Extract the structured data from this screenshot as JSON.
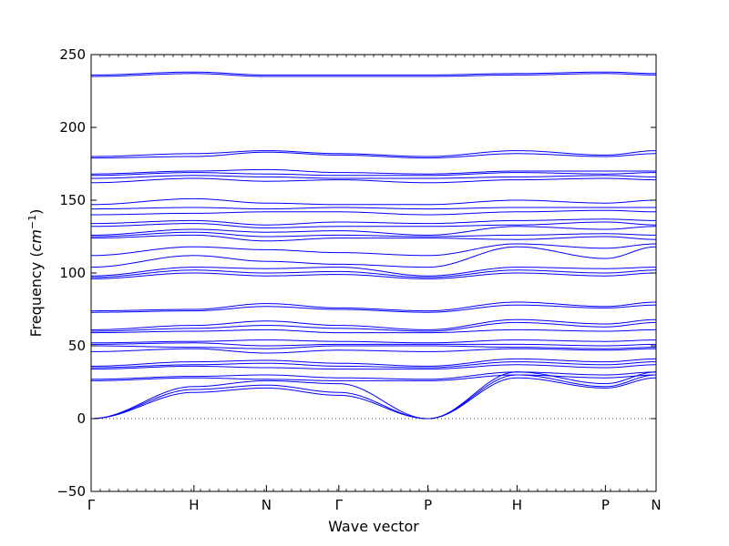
{
  "chart_data": {
    "type": "line",
    "title": "",
    "xlabel": "Wave vector",
    "ylabel_prefix": "Frequency (",
    "ylabel_unit_base": "cm",
    "ylabel_unit_exp": "−1",
    "ylabel_suffix": ")",
    "ylim": [
      -50,
      250
    ],
    "yticks": [
      -50,
      0,
      50,
      100,
      150,
      200,
      250
    ],
    "xlim": [
      0,
      7.8
    ],
    "kpoints": [
      {
        "label": "Γ",
        "x": 0
      },
      {
        "label": "H",
        "x": 1.42
      },
      {
        "label": "N",
        "x": 2.42
      },
      {
        "label": "Γ",
        "x": 3.42
      },
      {
        "label": "P",
        "x": 4.65
      },
      {
        "label": "H",
        "x": 5.88
      },
      {
        "label": "P",
        "x": 7.1
      },
      {
        "label": "N",
        "x": 7.8
      }
    ],
    "zero_line": 0,
    "line_color": "#0000ff",
    "grid": false,
    "legend": "none",
    "series": [
      {
        "values": [
          0,
          18,
          21,
          16,
          0,
          28,
          21,
          28,
          16
        ]
      },
      {
        "values": [
          0,
          20,
          23,
          18,
          0,
          30,
          22,
          30,
          18
        ]
      },
      {
        "values": [
          0,
          22,
          26,
          24,
          0,
          32,
          24,
          32,
          22
        ]
      },
      {
        "values": [
          26,
          28,
          27,
          26,
          26,
          30,
          28,
          30,
          29
        ]
      },
      {
        "values": [
          27,
          29,
          30,
          28,
          27,
          32,
          30,
          32,
          31
        ]
      },
      {
        "values": [
          34,
          36,
          35,
          34,
          34,
          37,
          35,
          37,
          36
        ]
      },
      {
        "values": [
          35,
          37,
          38,
          36,
          35,
          39,
          37,
          39,
          38
        ]
      },
      {
        "values": [
          36,
          39,
          40,
          38,
          36,
          41,
          39,
          41,
          40
        ]
      },
      {
        "values": [
          46,
          48,
          45,
          47,
          46,
          48,
          47,
          48,
          47
        ]
      },
      {
        "values": [
          50,
          49,
          48,
          50,
          50,
          49,
          48,
          49,
          50
        ]
      },
      {
        "values": [
          51,
          52,
          50,
          51,
          51,
          51,
          50,
          51,
          51
        ]
      },
      {
        "values": [
          52,
          53,
          54,
          53,
          52,
          54,
          53,
          54,
          52
        ]
      },
      {
        "values": [
          59,
          60,
          61,
          59,
          59,
          61,
          60,
          61,
          60
        ]
      },
      {
        "values": [
          60,
          62,
          64,
          62,
          60,
          66,
          63,
          66,
          62
        ]
      },
      {
        "values": [
          61,
          64,
          67,
          64,
          61,
          68,
          65,
          68,
          66
        ]
      },
      {
        "values": [
          73,
          74,
          77,
          75,
          73,
          78,
          76,
          78,
          77
        ]
      },
      {
        "values": [
          74,
          75,
          79,
          76,
          74,
          80,
          77,
          80,
          79
        ]
      },
      {
        "values": [
          96,
          100,
          98,
          99,
          96,
          100,
          98,
          100,
          97
        ]
      },
      {
        "values": [
          97,
          102,
          100,
          101,
          97,
          102,
          100,
          102,
          99
        ]
      },
      {
        "values": [
          98,
          104,
          103,
          104,
          98,
          104,
          103,
          104,
          100
        ]
      },
      {
        "values": [
          104,
          112,
          108,
          106,
          104,
          118,
          110,
          118,
          112
        ]
      },
      {
        "values": [
          112,
          118,
          116,
          114,
          112,
          120,
          117,
          120,
          116
        ]
      },
      {
        "values": [
          124,
          126,
          122,
          124,
          124,
          123,
          125,
          123,
          124
        ]
      },
      {
        "values": [
          125,
          128,
          125,
          126,
          125,
          126,
          127,
          126,
          126
        ]
      },
      {
        "values": [
          126,
          130,
          128,
          129,
          126,
          132,
          130,
          132,
          130
        ]
      },
      {
        "values": [
          132,
          134,
          131,
          132,
          132,
          133,
          135,
          133,
          134
        ]
      },
      {
        "values": [
          134,
          136,
          133,
          135,
          134,
          136,
          137,
          136,
          136
        ]
      },
      {
        "values": [
          140,
          141,
          142,
          142,
          140,
          142,
          143,
          142,
          143
        ]
      },
      {
        "values": [
          144,
          145,
          144,
          145,
          144,
          145,
          145,
          145,
          145
        ]
      },
      {
        "values": [
          147,
          151,
          148,
          147,
          147,
          150,
          148,
          150,
          148
        ]
      },
      {
        "values": [
          162,
          165,
          163,
          164,
          162,
          164,
          165,
          164,
          166
        ]
      },
      {
        "values": [
          165,
          167,
          166,
          165,
          165,
          166,
          167,
          166,
          167
        ]
      },
      {
        "values": [
          167,
          169,
          168,
          167,
          167,
          169,
          168,
          169,
          169
        ]
      },
      {
        "values": [
          168,
          170,
          171,
          169,
          168,
          170,
          170,
          170,
          172
        ]
      },
      {
        "values": [
          179,
          180,
          183,
          181,
          179,
          182,
          180,
          182,
          183
        ]
      },
      {
        "values": [
          180,
          182,
          184,
          182,
          180,
          184,
          181,
          184,
          184
        ]
      },
      {
        "values": [
          235,
          237,
          235,
          235,
          235,
          236,
          237,
          236,
          236
        ]
      },
      {
        "values": [
          236,
          238,
          236,
          236,
          236,
          237,
          238,
          237,
          237
        ]
      }
    ]
  }
}
